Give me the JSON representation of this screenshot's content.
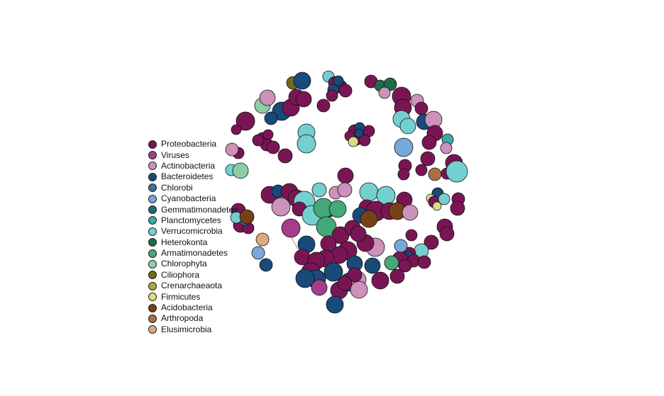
{
  "legend": {
    "items": [
      {
        "label": "Proteobacteria",
        "color": "#7a1554"
      },
      {
        "label": "Viruses",
        "color": "#a63d8a"
      },
      {
        "label": "Actinobacteria",
        "color": "#cc92b9"
      },
      {
        "label": "Bacteroidetes",
        "color": "#184a7a"
      },
      {
        "label": "Chlorobi",
        "color": "#3f6fa0"
      },
      {
        "label": "Cyanobacteria",
        "color": "#77a8dc"
      },
      {
        "label": "Gemmatimonadetes",
        "color": "#1d6e6c"
      },
      {
        "label": "Planctomycetes",
        "color": "#3fa8a8"
      },
      {
        "label": "Verrucomicrobia",
        "color": "#74cfd0"
      },
      {
        "label": "Heterokonta",
        "color": "#1d6b4a"
      },
      {
        "label": "Armatimonadetes",
        "color": "#44a878"
      },
      {
        "label": "Chlorophyta",
        "color": "#8ccda6"
      },
      {
        "label": "Ciliophora",
        "color": "#6e6a1c"
      },
      {
        "label": "Crenarchaeaota",
        "color": "#a8a83c"
      },
      {
        "label": "Firmicutes",
        "color": "#dcdc82"
      },
      {
        "label": "Acidobacteria",
        "color": "#744216"
      },
      {
        "label": "Arthropoda",
        "color": "#a87042"
      },
      {
        "label": "Elusimicrobia",
        "color": "#dcaa80"
      }
    ]
  }
}
